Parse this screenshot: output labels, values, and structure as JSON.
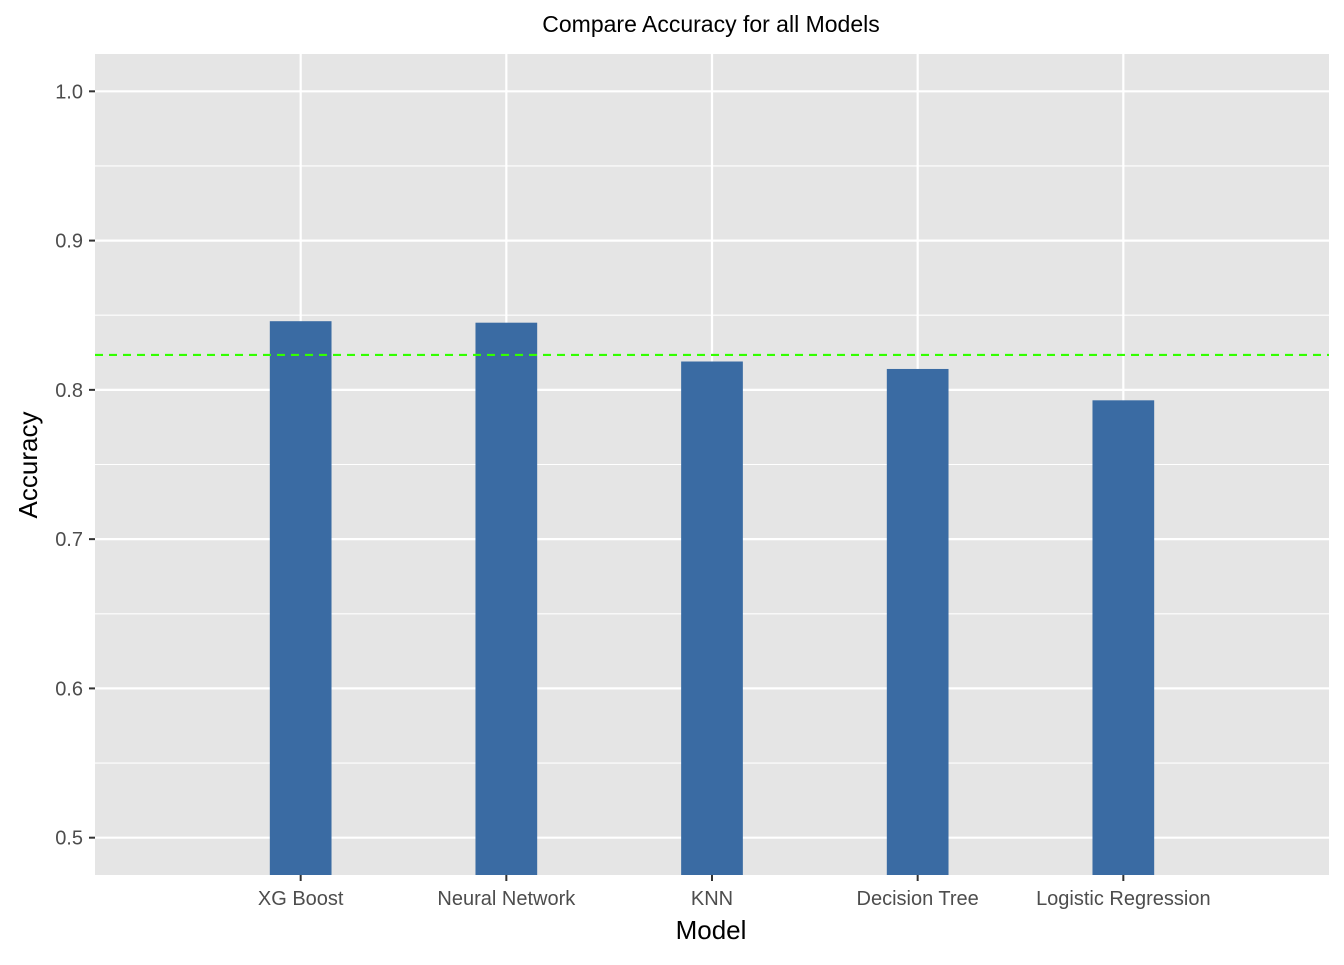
{
  "chart_data": {
    "type": "bar",
    "title": "Compare Accuracy for all Models",
    "xlabel": "Model",
    "ylabel": "Accuracy",
    "categories": [
      "XG Boost",
      "Neural Network",
      "KNN",
      "Decision Tree",
      "Logistic Regression"
    ],
    "values": [
      0.846,
      0.845,
      0.819,
      0.814,
      0.793
    ],
    "ylim": [
      0.475,
      1.025
    ],
    "y_ticks": [
      0.5,
      0.6,
      0.7,
      0.8,
      0.9,
      1.0
    ],
    "y_tick_labels": [
      "0.5",
      "0.6",
      "0.7",
      "0.8",
      "0.9",
      "1.0"
    ],
    "reference_line": {
      "value": 0.8234,
      "style": "dashed",
      "color": "#33ff00"
    },
    "grid": true,
    "legend": "none",
    "colors": {
      "bar": "#3a6ba3",
      "panel_background": "#e5e5e5",
      "grid": "#ffffff"
    }
  }
}
